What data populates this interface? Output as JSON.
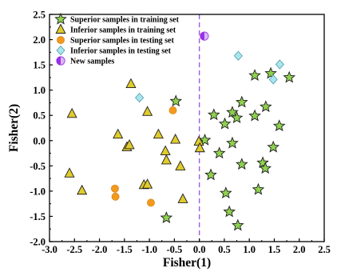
{
  "chart_data": {
    "type": "scatter",
    "xlabel": "Fisher(1)",
    "ylabel": "Fisher(2)",
    "xlim": [
      -3.0,
      2.5
    ],
    "ylim": [
      -2.0,
      2.5
    ],
    "xticks": [
      "-3.0",
      "-2.5",
      "-2.0",
      "-1.5",
      "-1.0",
      "-0.5",
      "0.0",
      "0.5",
      "1.0",
      "1.5",
      "2.0",
      "2.5"
    ],
    "yticks": [
      "2.5",
      "2.0",
      "1.5",
      "1.0",
      "0.5",
      "0.0",
      "-0.5",
      "-1.0",
      "-1.5",
      "-2.0"
    ],
    "legend_position": "top-left",
    "reference_line": {
      "x": 0.0,
      "style": "dashed",
      "color": "#a15bd9"
    },
    "series": [
      {
        "name": "Superior samples in training set",
        "marker": "star",
        "color": "#8fd14f",
        "points": [
          [
            -0.47,
            0.78
          ],
          [
            0.29,
            0.51
          ],
          [
            0.11,
            0.01
          ],
          [
            0.4,
            -0.25
          ],
          [
            0.51,
            0.33
          ],
          [
            0.66,
            0.56
          ],
          [
            0.75,
            0.45
          ],
          [
            0.85,
            0.76
          ],
          [
            1.11,
            1.29
          ],
          [
            1.43,
            1.33
          ],
          [
            1.8,
            1.25
          ],
          [
            1.33,
            0.67
          ],
          [
            1.11,
            0.49
          ],
          [
            0.66,
            -0.05
          ],
          [
            1.48,
            -0.13
          ],
          [
            1.6,
            0.29
          ],
          [
            0.85,
            -0.47
          ],
          [
            0.23,
            -0.68
          ],
          [
            1.27,
            -0.44
          ],
          [
            1.32,
            -0.55
          ],
          [
            1.18,
            -0.97
          ],
          [
            0.53,
            -1.04
          ],
          [
            0.6,
            -1.41
          ],
          [
            0.77,
            -1.68
          ],
          [
            -0.66,
            -1.53
          ]
        ]
      },
      {
        "name": "Inferior samples in training set",
        "marker": "triangle",
        "color": "#e0cc2c",
        "points": [
          [
            -2.55,
            0.53
          ],
          [
            -1.37,
            1.12
          ],
          [
            -1.04,
            0.57
          ],
          [
            -0.48,
            0.02
          ],
          [
            -0.82,
            0.12
          ],
          [
            -1.63,
            0.12
          ],
          [
            -1.45,
            -0.13
          ],
          [
            -1.4,
            -0.09
          ],
          [
            -0.68,
            -0.21
          ],
          [
            -0.66,
            -0.39
          ],
          [
            -0.38,
            -0.51
          ],
          [
            -2.6,
            -0.65
          ],
          [
            -2.35,
            -0.99
          ],
          [
            -1.11,
            -0.88
          ],
          [
            -1.04,
            -0.87
          ],
          [
            -0.33,
            -1.16
          ],
          [
            -0.01,
            -0.02
          ],
          [
            0.01,
            -0.15
          ]
        ]
      },
      {
        "name": "Superior samples in testing set",
        "marker": "circle",
        "color": "#f39a1c",
        "points": [
          [
            -0.53,
            0.6
          ],
          [
            -1.69,
            -0.95
          ],
          [
            -1.68,
            -1.11
          ],
          [
            -0.97,
            -1.23
          ]
        ]
      },
      {
        "name": "Inferior samples in testing set",
        "marker": "diamond",
        "color": "#a8e6ee",
        "points": [
          [
            -1.2,
            0.85
          ],
          [
            0.78,
            1.68
          ],
          [
            1.61,
            1.51
          ],
          [
            1.48,
            1.21
          ]
        ]
      },
      {
        "name": "New samples",
        "marker": "half-circle",
        "color": "#9b30e8",
        "points": [
          [
            0.1,
            2.07
          ]
        ]
      }
    ]
  }
}
